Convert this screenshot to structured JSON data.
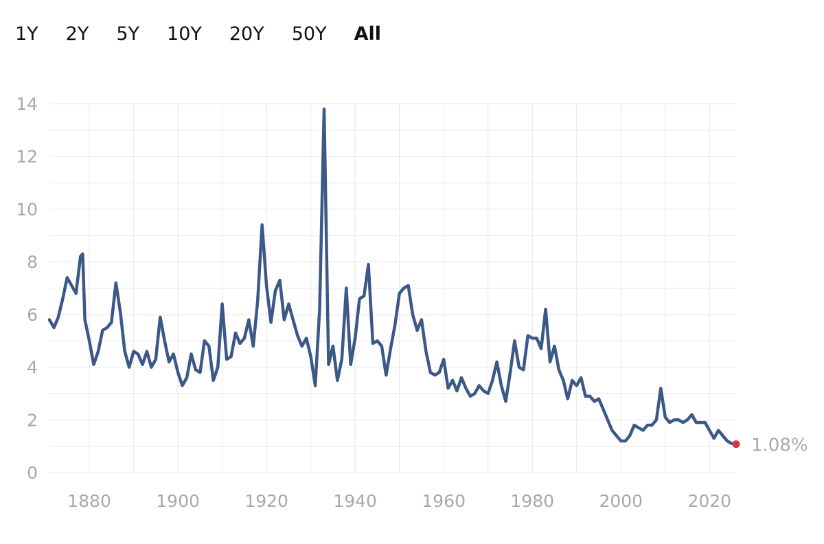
{
  "range_selector": {
    "tabs": [
      "1Y",
      "2Y",
      "5Y",
      "10Y",
      "20Y",
      "50Y",
      "All"
    ],
    "active": "All"
  },
  "colors": {
    "line": "#3b5887",
    "marker": "#d63548",
    "grid": "#e8e8e8",
    "tick_text": "#a8a8a8"
  },
  "end_label": "1.08%",
  "chart_data": {
    "type": "line",
    "title": "",
    "xlabel": "",
    "ylabel": "",
    "xlim": [
      1871,
      2026
    ],
    "ylim": [
      0,
      14
    ],
    "y_ticks": [
      0,
      2,
      4,
      6,
      8,
      10,
      12,
      14
    ],
    "x_ticks": [
      1880,
      1900,
      1920,
      1940,
      1960,
      1980,
      2000,
      2020
    ],
    "grid": true,
    "series": [
      {
        "x": [
          1871,
          1872,
          1873,
          1874,
          1875,
          1876,
          1877,
          1878,
          1878.5,
          1879,
          1880,
          1881,
          1882,
          1883,
          1884,
          1885,
          1886,
          1887,
          1888,
          1889,
          1890,
          1891,
          1892,
          1893,
          1894,
          1895,
          1896,
          1897,
          1898,
          1899,
          1900,
          1901,
          1902,
          1903,
          1904,
          1905,
          1906,
          1907,
          1908,
          1909,
          1910,
          1911,
          1912,
          1913,
          1914,
          1915,
          1916,
          1917,
          1918,
          1919,
          1920,
          1921,
          1922,
          1923,
          1924,
          1925,
          1926,
          1927,
          1928,
          1929,
          1930,
          1931,
          1932,
          1933,
          1934,
          1935,
          1936,
          1937,
          1938,
          1939,
          1940,
          1941,
          1942,
          1943,
          1944,
          1945,
          1946,
          1947,
          1948,
          1949,
          1950,
          1951,
          1952,
          1953,
          1954,
          1955,
          1956,
          1957,
          1958,
          1959,
          1960,
          1961,
          1962,
          1963,
          1964,
          1965,
          1966,
          1967,
          1968,
          1969,
          1970,
          1971,
          1972,
          1973,
          1974,
          1975,
          1976,
          1977,
          1978,
          1979,
          1980,
          1981,
          1982,
          1983,
          1984,
          1985,
          1986,
          1987,
          1988,
          1989,
          1990,
          1991,
          1992,
          1993,
          1994,
          1995,
          1996,
          1997,
          1998,
          1999,
          2000,
          2001,
          2002,
          2003,
          2004,
          2005,
          2006,
          2007,
          2008,
          2009,
          2010,
          2011,
          2012,
          2013,
          2014,
          2015,
          2016,
          2017,
          2018,
          2019,
          2020,
          2021,
          2022,
          2023,
          2024,
          2025,
          2026
        ],
        "values": [
          5.8,
          5.5,
          5.9,
          6.6,
          7.4,
          7.1,
          6.8,
          8.2,
          8.3,
          5.8,
          5.0,
          4.1,
          4.6,
          5.4,
          5.5,
          5.7,
          7.2,
          6.1,
          4.6,
          4.0,
          4.6,
          4.5,
          4.1,
          4.6,
          4.0,
          4.3,
          5.9,
          5.0,
          4.2,
          4.5,
          3.8,
          3.3,
          3.6,
          4.5,
          3.9,
          3.8,
          5.0,
          4.8,
          3.5,
          4.0,
          6.4,
          4.3,
          4.4,
          5.3,
          4.9,
          5.1,
          5.8,
          4.8,
          6.5,
          9.4,
          7.1,
          5.7,
          6.9,
          7.3,
          5.8,
          6.4,
          5.8,
          5.2,
          4.8,
          5.1,
          4.4,
          3.3,
          6.2,
          13.8,
          4.1,
          4.8,
          3.5,
          4.3,
          7.0,
          4.1,
          5.1,
          6.6,
          6.7,
          7.9,
          4.9,
          5.0,
          4.8,
          3.7,
          4.7,
          5.6,
          6.8,
          7.0,
          7.1,
          6.0,
          5.4,
          5.8,
          4.6,
          3.8,
          3.7,
          3.8,
          4.3,
          3.2,
          3.5,
          3.1,
          3.6,
          3.2,
          2.9,
          3.0,
          3.3,
          3.1,
          3.0,
          3.5,
          4.2,
          3.3,
          2.7,
          3.8,
          5.0,
          4.0,
          3.9,
          5.2,
          5.1,
          5.1,
          4.7,
          6.2,
          4.2,
          4.8,
          3.9,
          3.5,
          2.8,
          3.5,
          3.3,
          3.6,
          2.9,
          2.9,
          2.7,
          2.8,
          2.4,
          2.0,
          1.6,
          1.4,
          1.2,
          1.2,
          1.4,
          1.8,
          1.7,
          1.6,
          1.8,
          1.8,
          2.0,
          3.2,
          2.1,
          1.9,
          2.0,
          2.0,
          1.9,
          2.0,
          2.2,
          1.9,
          1.9,
          1.9,
          1.6,
          1.3,
          1.6,
          1.4,
          1.2,
          1.1,
          1.08
        ]
      }
    ]
  }
}
